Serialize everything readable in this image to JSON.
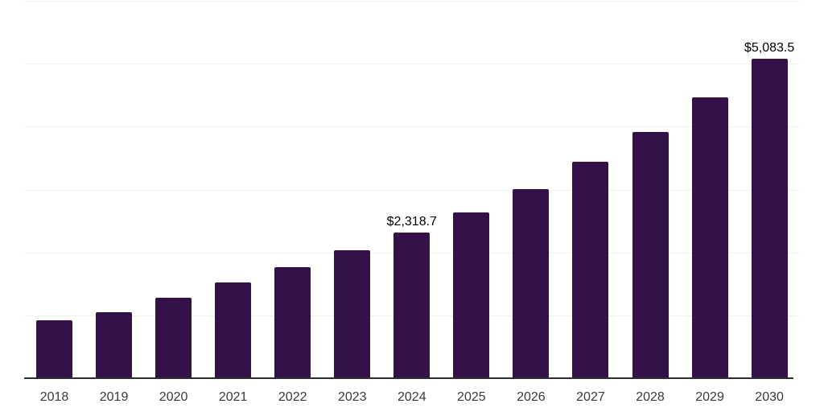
{
  "chart_data": {
    "type": "bar",
    "title": "",
    "xlabel": "",
    "ylabel": "",
    "categories": [
      "2018",
      "2019",
      "2020",
      "2021",
      "2022",
      "2023",
      "2024",
      "2025",
      "2026",
      "2027",
      "2028",
      "2029",
      "2030"
    ],
    "values": [
      915,
      1045,
      1285,
      1525,
      1765,
      2040,
      2318.7,
      2635,
      3010,
      3435,
      3920,
      4465,
      5083.5
    ],
    "data_labels": [
      "",
      "",
      "",
      "",
      "",
      "",
      "$2,318.7",
      "",
      "",
      "",
      "",
      "",
      "$5,083.5"
    ],
    "ylim": [
      0,
      6000
    ],
    "gridline_interval": 1000,
    "y_tick_labels_visible": false,
    "grid": "horizontal",
    "legend": "none",
    "bar_color": "#35114a",
    "axis_line_color": "#2e2e2e",
    "gridline_color": "#f0f0f0",
    "tick_label_color": "#3a3a3a",
    "data_label_color": "#000000"
  }
}
